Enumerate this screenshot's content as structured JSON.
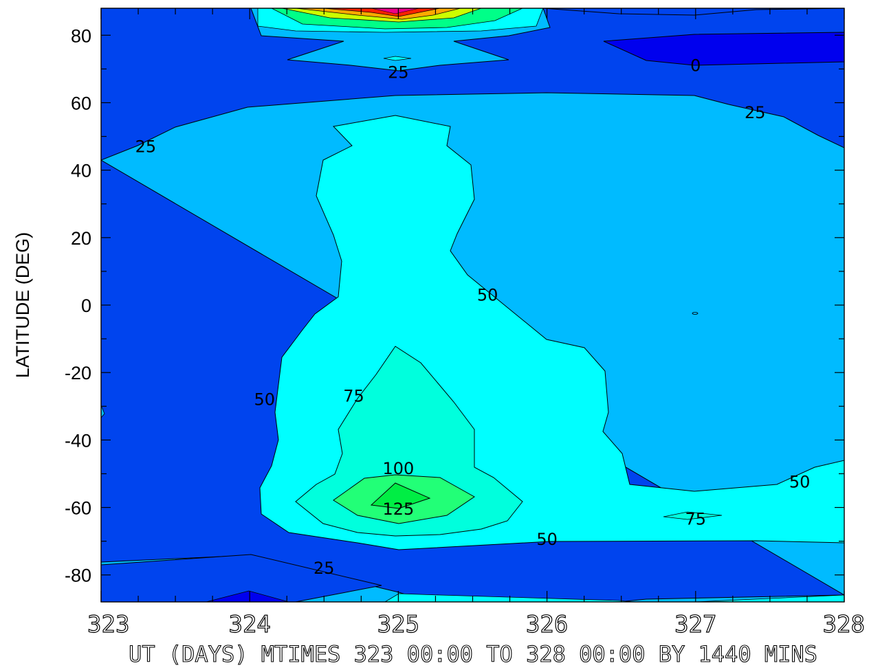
{
  "chart_data": {
    "type": "contour",
    "title": "",
    "xlabel": "UT (DAYS) MTIMES 323 00:00 TO 328 00:00 BY 1440 MINS",
    "ylabel": "LATITUDE (DEG)",
    "xlim": [
      323,
      328
    ],
    "ylim": [
      -88,
      88
    ],
    "x_ticks": [
      323,
      324,
      325,
      326,
      327,
      328
    ],
    "x_tick_labels": [
      "323",
      "324",
      "325",
      "326",
      "327",
      "328"
    ],
    "y_ticks": [
      -80,
      -60,
      -40,
      -20,
      0,
      20,
      40,
      60,
      80
    ],
    "y_tick_labels": [
      "-80",
      "-60",
      "-40",
      "-20",
      "0",
      "20",
      "40",
      "60",
      "80"
    ],
    "grid": false,
    "contour_levels": [
      0,
      25,
      50,
      75,
      100,
      125
    ],
    "level_colors": {
      "below_0": "#0000ee",
      "0_25": "#0044ee",
      "25_50": "#00bbff",
      "50_75": "#00ffff",
      "75_100": "#00ffdd",
      "100_125": "#22ff77",
      "125_150": "#00ee44",
      "peak": "#ff0000"
    },
    "contour_labels": [
      {
        "value": "25",
        "x": 325.0,
        "y": 69
      },
      {
        "value": "0",
        "x": 327.0,
        "y": 71
      },
      {
        "value": "25",
        "x": 327.4,
        "y": 57
      },
      {
        "value": "25",
        "x": 323.3,
        "y": 47
      },
      {
        "value": "50",
        "x": 325.6,
        "y": 3
      },
      {
        "value": "50",
        "x": 324.1,
        "y": -28
      },
      {
        "value": "75",
        "x": 324.7,
        "y": -27
      },
      {
        "value": "100",
        "x": 325.0,
        "y": -48.5
      },
      {
        "value": "125",
        "x": 325.0,
        "y": -60.5
      },
      {
        "value": "75",
        "x": 327.0,
        "y": -63.5
      },
      {
        "value": "50",
        "x": 327.7,
        "y": -52.5
      },
      {
        "value": "50",
        "x": 326.0,
        "y": -69.5
      },
      {
        "value": "25",
        "x": 324.5,
        "y": -78
      }
    ]
  }
}
